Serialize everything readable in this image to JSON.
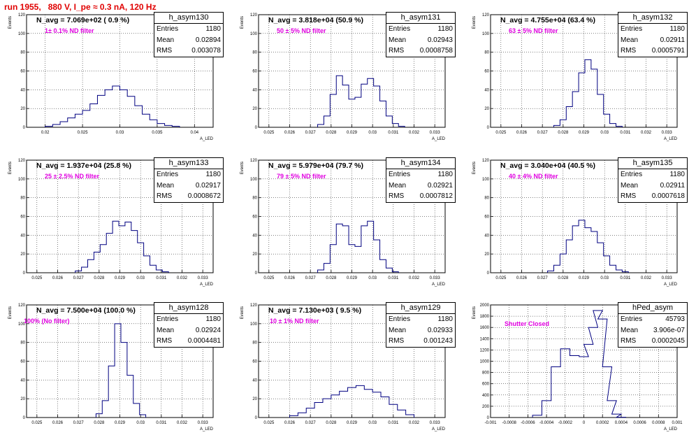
{
  "title": "run 1955,   880 V, I_pe ≈ 0.3 nA, 120 Hz",
  "ylabel": "Events",
  "xlabel": "A_LED",
  "stat_labels": {
    "entries": "Entries",
    "mean": "Mean",
    "rms": "RMS"
  },
  "chart_data": [
    {
      "type": "bar",
      "name": "h_asym130",
      "navg": "N_avg = 7.069e+02 ( 0.9 %)",
      "filter": "1± 0.1% ND filter",
      "entries": "1180",
      "mean": "0.02894",
      "rms": "0.003078",
      "xlim": [
        0.0175,
        0.0425
      ],
      "ylim": [
        0,
        120
      ],
      "xticks": [
        "0.02",
        "0.025",
        "0.03",
        "0.035",
        "0.04"
      ],
      "xtick_vals": [
        0.02,
        0.025,
        0.03,
        0.035,
        0.04
      ],
      "yticks": [
        "0",
        "20",
        "40",
        "60",
        "80",
        "100",
        "120"
      ],
      "x": [
        0.0205,
        0.0215,
        0.0225,
        0.0235,
        0.0245,
        0.0255,
        0.0265,
        0.0275,
        0.0285,
        0.0295,
        0.0305,
        0.0315,
        0.0325,
        0.0335,
        0.0345,
        0.0355,
        0.0365,
        0.0375
      ],
      "values": [
        1,
        3,
        6,
        10,
        14,
        18,
        25,
        34,
        40,
        44,
        40,
        33,
        23,
        14,
        8,
        4,
        2,
        1
      ]
    },
    {
      "type": "bar",
      "name": "h_asym131",
      "navg": "N_avg = 3.818e+04 (50.9 %)",
      "filter": "50 ± 5% ND filter",
      "entries": "1180",
      "mean": "0.02943",
      "rms": "0.0008758",
      "xlim": [
        0.0245,
        0.0335
      ],
      "ylim": [
        0,
        120
      ],
      "xticks": [
        "0.025",
        "0.026",
        "0.027",
        "0.028",
        "0.029",
        "0.03",
        "0.031",
        "0.032",
        "0.033"
      ],
      "xtick_vals": [
        0.025,
        0.026,
        0.027,
        0.028,
        0.029,
        0.03,
        0.031,
        0.032,
        0.033
      ],
      "yticks": [
        "0",
        "20",
        "40",
        "60",
        "80",
        "100",
        "120"
      ],
      "x": [
        0.0275,
        0.0278,
        0.0281,
        0.0284,
        0.0287,
        0.029,
        0.0293,
        0.0296,
        0.0299,
        0.0302,
        0.0305,
        0.0308,
        0.0311,
        0.0314
      ],
      "values": [
        3,
        12,
        35,
        55,
        45,
        30,
        32,
        46,
        52,
        44,
        28,
        12,
        4,
        1
      ]
    },
    {
      "type": "bar",
      "name": "h_asym132",
      "navg": "N_avg = 4.755e+04 (63.4 %)",
      "filter": "63 ± 5% ND filter",
      "entries": "1180",
      "mean": "0.02911",
      "rms": "0.0005791",
      "xlim": [
        0.0245,
        0.0335
      ],
      "ylim": [
        0,
        120
      ],
      "xticks": [
        "0.025",
        "0.026",
        "0.027",
        "0.028",
        "0.029",
        "0.03",
        "0.031",
        "0.032",
        "0.033"
      ],
      "xtick_vals": [
        0.025,
        0.026,
        0.027,
        0.028,
        0.029,
        0.03,
        0.031,
        0.032,
        0.033
      ],
      "yticks": [
        "0",
        "20",
        "40",
        "60",
        "80",
        "100",
        "120"
      ],
      "x": [
        0.0277,
        0.028,
        0.0283,
        0.0286,
        0.0289,
        0.0292,
        0.0295,
        0.0298,
        0.0301,
        0.0304,
        0.0307
      ],
      "values": [
        2,
        8,
        22,
        38,
        58,
        72,
        62,
        35,
        14,
        4,
        1
      ]
    },
    {
      "type": "bar",
      "name": "h_asym133",
      "navg": "N_avg = 1.937e+04 (25.8 %)",
      "filter": "25 ± 2.5% ND filter",
      "entries": "1180",
      "mean": "0.02917",
      "rms": "0.0008672",
      "xlim": [
        0.0245,
        0.0335
      ],
      "ylim": [
        0,
        120
      ],
      "xticks": [
        "0.025",
        "0.026",
        "0.027",
        "0.028",
        "0.029",
        "0.03",
        "0.031",
        "0.032",
        "0.033"
      ],
      "xtick_vals": [
        0.025,
        0.026,
        0.027,
        0.028,
        0.029,
        0.03,
        0.031,
        0.032,
        0.033
      ],
      "yticks": [
        "0",
        "20",
        "40",
        "60",
        "80",
        "100",
        "120"
      ],
      "x": [
        0.027,
        0.0273,
        0.0276,
        0.0279,
        0.0282,
        0.0285,
        0.0288,
        0.0291,
        0.0294,
        0.0297,
        0.03,
        0.0303,
        0.0306,
        0.0309,
        0.0312
      ],
      "values": [
        2,
        6,
        14,
        22,
        30,
        42,
        55,
        50,
        54,
        45,
        32,
        18,
        8,
        3,
        1
      ]
    },
    {
      "type": "bar",
      "name": "h_asym134",
      "navg": "N_avg = 5.979e+04 (79.7 %)",
      "filter": "79 ± 5% ND filter",
      "entries": "1180",
      "mean": "0.02921",
      "rms": "0.0007812",
      "xlim": [
        0.0245,
        0.0335
      ],
      "ylim": [
        0,
        120
      ],
      "xticks": [
        "0.025",
        "0.026",
        "0.027",
        "0.028",
        "0.029",
        "0.03",
        "0.031",
        "0.032",
        "0.033"
      ],
      "xtick_vals": [
        0.025,
        0.026,
        0.027,
        0.028,
        0.029,
        0.03,
        0.031,
        0.032,
        0.033
      ],
      "yticks": [
        "0",
        "20",
        "40",
        "60",
        "80",
        "100",
        "120"
      ],
      "x": [
        0.0275,
        0.0278,
        0.0281,
        0.0284,
        0.0287,
        0.029,
        0.0293,
        0.0296,
        0.0299,
        0.0302,
        0.0305,
        0.0308,
        0.0311
      ],
      "values": [
        3,
        10,
        30,
        52,
        50,
        30,
        28,
        50,
        55,
        35,
        14,
        5,
        1
      ]
    },
    {
      "type": "bar",
      "name": "h_asym135",
      "navg": "N_avg = 3.040e+04 (40.5 %)",
      "filter": "40 ± 4% ND filter",
      "entries": "1180",
      "mean": "0.02911",
      "rms": "0.0007618",
      "xlim": [
        0.0245,
        0.0335
      ],
      "ylim": [
        0,
        120
      ],
      "xticks": [
        "0.025",
        "0.026",
        "0.027",
        "0.028",
        "0.029",
        "0.03",
        "0.031",
        "0.032",
        "0.033"
      ],
      "xtick_vals": [
        0.025,
        0.026,
        0.027,
        0.028,
        0.029,
        0.03,
        0.031,
        0.032,
        0.033
      ],
      "yticks": [
        "0",
        "20",
        "40",
        "60",
        "80",
        "100",
        "120"
      ],
      "x": [
        0.0274,
        0.0277,
        0.028,
        0.0283,
        0.0286,
        0.0289,
        0.0292,
        0.0295,
        0.0298,
        0.0301,
        0.0304,
        0.0307,
        0.031
      ],
      "values": [
        2,
        8,
        20,
        35,
        50,
        56,
        48,
        44,
        32,
        18,
        8,
        3,
        1
      ]
    },
    {
      "type": "bar",
      "name": "h_asym128",
      "navg": "N_avg = 7.500e+04 (100.0 %)",
      "filter": "100% (No filter)",
      "entries": "1180",
      "mean": "0.02924",
      "rms": "0.0004481",
      "xlim": [
        0.0245,
        0.0335
      ],
      "ylim": [
        0,
        120
      ],
      "xticks": [
        "0.025",
        "0.026",
        "0.027",
        "0.028",
        "0.029",
        "0.03",
        "0.031",
        "0.032",
        "0.033"
      ],
      "xtick_vals": [
        0.025,
        0.026,
        0.027,
        0.028,
        0.029,
        0.03,
        0.031,
        0.032,
        0.033
      ],
      "yticks": [
        "0",
        "20",
        "40",
        "60",
        "80",
        "100",
        "120"
      ],
      "x": [
        0.028,
        0.0283,
        0.0286,
        0.0289,
        0.0292,
        0.0295,
        0.0298,
        0.0301
      ],
      "values": [
        4,
        18,
        55,
        100,
        80,
        45,
        15,
        3
      ]
    },
    {
      "type": "bar",
      "name": "h_asym129",
      "navg": "N_avg = 7.130e+03 ( 9.5 %)",
      "filter": "10 ± 1% ND filter",
      "entries": "1180",
      "mean": "0.02933",
      "rms": "0.001243",
      "xlim": [
        0.0245,
        0.0335
      ],
      "ylim": [
        0,
        120
      ],
      "xticks": [
        "0.025",
        "0.026",
        "0.027",
        "0.028",
        "0.029",
        "0.03",
        "0.031",
        "0.032",
        "0.033"
      ],
      "xtick_vals": [
        0.025,
        0.026,
        0.027,
        0.028,
        0.029,
        0.03,
        0.031,
        0.032,
        0.033
      ],
      "yticks": [
        "0",
        "20",
        "40",
        "60",
        "80",
        "100",
        "120"
      ],
      "x": [
        0.0262,
        0.0266,
        0.027,
        0.0274,
        0.0278,
        0.0282,
        0.0286,
        0.029,
        0.0294,
        0.0298,
        0.0302,
        0.0306,
        0.031,
        0.0314,
        0.0318
      ],
      "values": [
        2,
        5,
        10,
        16,
        20,
        24,
        28,
        32,
        34,
        30,
        27,
        22,
        14,
        8,
        3
      ]
    },
    {
      "type": "bar",
      "name": "hPed_asym",
      "navg": "",
      "filter": "Shutter Closed",
      "entries": "45793",
      "mean": "3.906e-07",
      "rms": "0.0002045",
      "xlim": [
        -0.001,
        0.001
      ],
      "ylim": [
        0,
        2000
      ],
      "xticks": [
        "-0.001",
        "-0.0008",
        "-0.0006",
        "-0.0004",
        "-0.0002",
        "0",
        "0.0002",
        "0.0004",
        "0.0006",
        "0.0008",
        "0.001"
      ],
      "xtick_vals": [
        -0.001,
        -0.0008,
        -0.0006,
        -0.0004,
        -0.0002,
        0,
        0.0002,
        0.0004,
        0.0006,
        0.0008,
        0.001
      ],
      "yticks": [
        "0",
        "200",
        "400",
        "600",
        "800",
        "1000",
        "1200",
        "1400",
        "1600",
        "1800",
        "2000"
      ],
      "x": [
        -0.0005,
        -0.0004,
        -0.0003,
        -0.0002,
        -0.0001,
        0.0,
        5e-05,
        0.0001,
        0.00015,
        0.0002,
        0.00025,
        0.0003,
        0.00035,
        0.0004
      ],
      "values": [
        40,
        300,
        900,
        1220,
        1100,
        1080,
        1300,
        1600,
        1900,
        1750,
        900,
        300,
        60,
        5
      ]
    }
  ]
}
